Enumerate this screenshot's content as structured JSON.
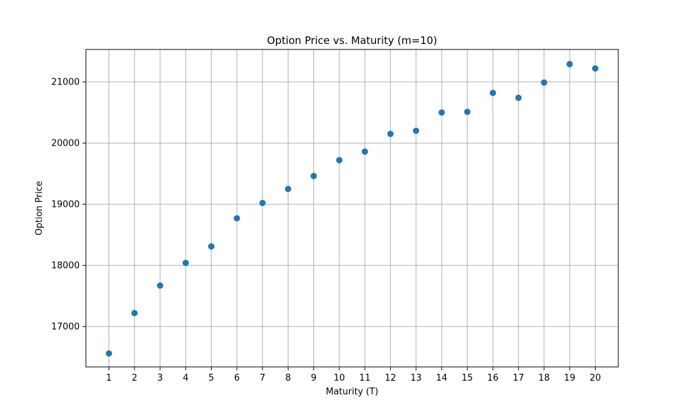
{
  "chart_data": {
    "type": "scatter",
    "title": "Option Price vs. Maturity (m=10)",
    "xlabel": "Maturity (T)",
    "ylabel": "Option Price",
    "x": [
      1,
      2,
      3,
      4,
      5,
      6,
      7,
      8,
      9,
      10,
      11,
      12,
      13,
      14,
      15,
      16,
      17,
      18,
      19,
      20
    ],
    "y": [
      16560,
      17220,
      17670,
      18040,
      18310,
      18770,
      19020,
      19250,
      19460,
      19720,
      19860,
      20150,
      20200,
      20500,
      20510,
      20820,
      20740,
      20990,
      21290,
      21220
    ],
    "xlim": [
      0.1,
      20.9
    ],
    "ylim": [
      16340,
      21530
    ],
    "xticks": [
      1,
      2,
      3,
      4,
      5,
      6,
      7,
      8,
      9,
      10,
      11,
      12,
      13,
      14,
      15,
      16,
      17,
      18,
      19,
      20
    ],
    "yticks": [
      17000,
      18000,
      19000,
      20000,
      21000
    ],
    "grid": true,
    "marker_color": "#1f77b4",
    "grid_color": "#b0b0b0"
  }
}
